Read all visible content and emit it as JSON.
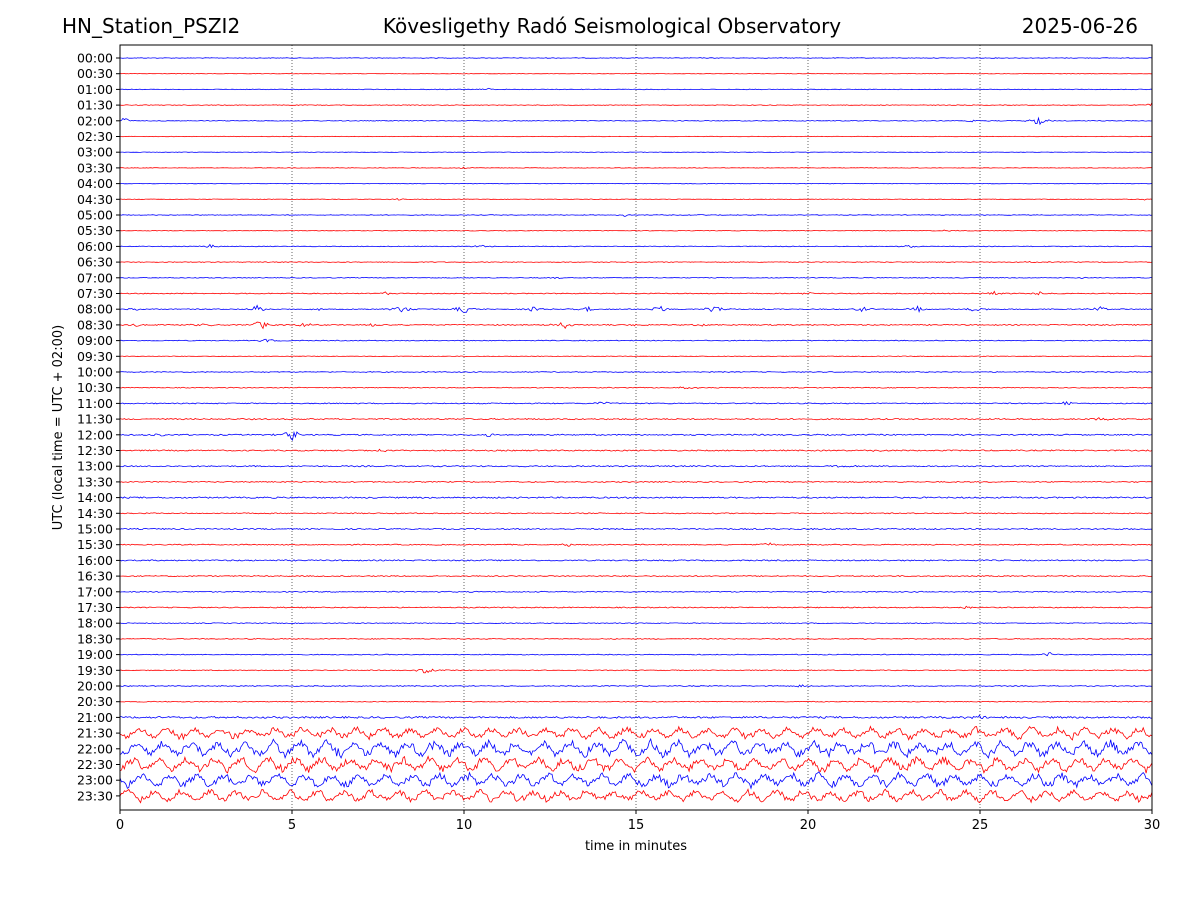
{
  "header": {
    "station": "HN_Station_PSZI2",
    "observatory": "Kövesligethy Radó Seismological Observatory",
    "date": "2025-06-26"
  },
  "chart_data": {
    "type": "line",
    "title": "Kövesligethy Radó Seismological Observatory",
    "xlabel": "time in minutes",
    "ylabel": "UTC (local time = UTC + 02:00)",
    "xlim": [
      0,
      30
    ],
    "xticks": [
      "0",
      "5",
      "10",
      "15",
      "20",
      "25",
      "30"
    ],
    "x_gridlines": [
      5,
      10,
      15,
      20,
      25
    ],
    "grid": "vertical dotted",
    "colors": {
      "even_rows": "#0000ff",
      "odd_rows": "#ff0000"
    },
    "rows": [
      "00:00",
      "00:30",
      "01:00",
      "01:30",
      "02:00",
      "02:30",
      "03:00",
      "03:30",
      "04:00",
      "04:30",
      "05:00",
      "05:30",
      "06:00",
      "06:30",
      "07:00",
      "07:30",
      "08:00",
      "08:30",
      "09:00",
      "09:30",
      "10:00",
      "10:30",
      "11:00",
      "11:30",
      "12:00",
      "12:30",
      "13:00",
      "13:30",
      "14:00",
      "14:30",
      "15:00",
      "15:30",
      "16:00",
      "16:30",
      "17:00",
      "17:30",
      "18:00",
      "18:30",
      "19:00",
      "19:30",
      "20:00",
      "20:30",
      "21:00",
      "21:30",
      "22:00",
      "22:30",
      "23:00",
      "23:30"
    ],
    "noise_level": [
      0.3,
      0.25,
      0.3,
      0.3,
      0.35,
      0.25,
      0.25,
      0.25,
      0.25,
      0.3,
      0.3,
      0.3,
      0.35,
      0.35,
      0.35,
      0.45,
      0.45,
      0.5,
      0.4,
      0.3,
      0.4,
      0.4,
      0.5,
      0.6,
      0.6,
      0.6,
      0.6,
      0.5,
      0.7,
      0.5,
      0.6,
      0.5,
      0.6,
      0.5,
      0.5,
      0.5,
      0.4,
      0.4,
      0.4,
      0.4,
      0.4,
      0.4,
      0.9,
      2.4,
      3.4,
      3.0,
      3.0,
      2.6
    ],
    "events": [
      {
        "row": 2,
        "minute": 10.7,
        "amp": 1.2
      },
      {
        "row": 3,
        "minute": 30.0,
        "amp": 2.5
      },
      {
        "row": 4,
        "minute": 0.1,
        "amp": 4.0
      },
      {
        "row": 4,
        "minute": 24.8,
        "amp": 1.5
      },
      {
        "row": 4,
        "minute": 26.7,
        "amp": 5.0
      },
      {
        "row": 7,
        "minute": 10.0,
        "amp": 1.0
      },
      {
        "row": 8,
        "minute": 17.0,
        "amp": 1.0
      },
      {
        "row": 9,
        "minute": 8.0,
        "amp": 1.0
      },
      {
        "row": 9,
        "minute": 29.8,
        "amp": 1.0
      },
      {
        "row": 10,
        "minute": 14.7,
        "amp": 1.5
      },
      {
        "row": 10,
        "minute": 16.8,
        "amp": 1.0
      },
      {
        "row": 11,
        "minute": 24.0,
        "amp": 1.0
      },
      {
        "row": 12,
        "minute": 2.6,
        "amp": 2.0
      },
      {
        "row": 12,
        "minute": 10.5,
        "amp": 1.5
      },
      {
        "row": 12,
        "minute": 23.0,
        "amp": 1.5
      },
      {
        "row": 13,
        "minute": 26.5,
        "amp": 1.0
      },
      {
        "row": 14,
        "minute": 12.7,
        "amp": 1.0
      },
      {
        "row": 14,
        "minute": 28.0,
        "amp": 1.0
      },
      {
        "row": 15,
        "minute": 7.7,
        "amp": 1.5
      },
      {
        "row": 15,
        "minute": 20.0,
        "amp": 1.5
      },
      {
        "row": 15,
        "minute": 25.4,
        "amp": 3.0
      },
      {
        "row": 15,
        "minute": 26.7,
        "amp": 2.0
      },
      {
        "row": 16,
        "minute": 0.6,
        "amp": 2.0
      },
      {
        "row": 16,
        "minute": 4.0,
        "amp": 4.0
      },
      {
        "row": 16,
        "minute": 5.9,
        "amp": 2.5
      },
      {
        "row": 16,
        "minute": 8.2,
        "amp": 4.0
      },
      {
        "row": 16,
        "minute": 10.0,
        "amp": 5.0
      },
      {
        "row": 16,
        "minute": 12.0,
        "amp": 2.5
      },
      {
        "row": 16,
        "minute": 13.6,
        "amp": 2.5
      },
      {
        "row": 16,
        "minute": 15.7,
        "amp": 4.0
      },
      {
        "row": 16,
        "minute": 17.3,
        "amp": 5.0
      },
      {
        "row": 16,
        "minute": 21.6,
        "amp": 2.5
      },
      {
        "row": 16,
        "minute": 23.2,
        "amp": 3.0
      },
      {
        "row": 16,
        "minute": 24.9,
        "amp": 4.0
      },
      {
        "row": 16,
        "minute": 28.5,
        "amp": 2.5
      },
      {
        "row": 17,
        "minute": 0.5,
        "amp": 2.0
      },
      {
        "row": 17,
        "minute": 2.4,
        "amp": 2.0
      },
      {
        "row": 17,
        "minute": 4.1,
        "amp": 5.0
      },
      {
        "row": 17,
        "minute": 5.4,
        "amp": 2.5
      },
      {
        "row": 17,
        "minute": 7.4,
        "amp": 2.0
      },
      {
        "row": 17,
        "minute": 12.9,
        "amp": 4.0
      },
      {
        "row": 17,
        "minute": 15.0,
        "amp": 1.5
      },
      {
        "row": 17,
        "minute": 16.9,
        "amp": 1.5
      },
      {
        "row": 18,
        "minute": 4.3,
        "amp": 2.0
      },
      {
        "row": 21,
        "minute": 16.5,
        "amp": 2.0
      },
      {
        "row": 22,
        "minute": 14.0,
        "amp": 2.0
      },
      {
        "row": 22,
        "minute": 27.5,
        "amp": 2.5
      },
      {
        "row": 23,
        "minute": 28.5,
        "amp": 2.5
      },
      {
        "row": 24,
        "minute": 1.2,
        "amp": 2.0
      },
      {
        "row": 24,
        "minute": 5.0,
        "amp": 6.0
      },
      {
        "row": 24,
        "minute": 10.7,
        "amp": 2.5
      },
      {
        "row": 25,
        "minute": 7.6,
        "amp": 2.5
      },
      {
        "row": 25,
        "minute": 22.0,
        "amp": 1.5
      },
      {
        "row": 26,
        "minute": 21.0,
        "amp": 1.5
      },
      {
        "row": 31,
        "minute": 13.0,
        "amp": 1.5
      },
      {
        "row": 31,
        "minute": 18.9,
        "amp": 2.5
      },
      {
        "row": 35,
        "minute": 24.6,
        "amp": 1.5
      },
      {
        "row": 38,
        "minute": 27.0,
        "amp": 2.5
      },
      {
        "row": 39,
        "minute": 8.9,
        "amp": 3.5
      },
      {
        "row": 40,
        "minute": 19.8,
        "amp": 1.5
      },
      {
        "row": 42,
        "minute": 25.0,
        "amp": 3.0
      },
      {
        "row": 43,
        "minute": 25.0,
        "amp": 4.0
      }
    ]
  }
}
